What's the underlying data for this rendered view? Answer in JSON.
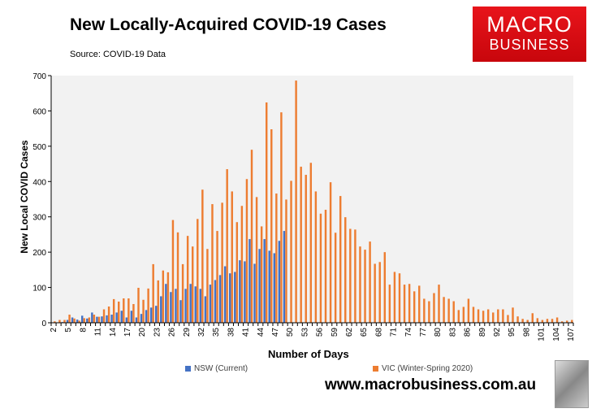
{
  "header": {
    "title": "New Locally-Acquired COVID-19 Cases",
    "source": "Source: COVID-19 Data"
  },
  "logo": {
    "line1": "MACRO",
    "line2": "BUSINESS"
  },
  "footer": {
    "url": "www.macrobusiness.com.au"
  },
  "colors": {
    "nsw": "#4472c4",
    "vic": "#ed7d31",
    "plot_bg": "#f2f2f2"
  },
  "chart_data": {
    "type": "bar",
    "title": "New Locally-Acquired COVID-19 Cases",
    "xlabel": "Number of Days",
    "ylabel": "New Local COVID Cases",
    "ylim": [
      0,
      700
    ],
    "yticks": [
      0,
      100,
      200,
      300,
      400,
      500,
      600,
      700
    ],
    "x_start": 2,
    "x_end": 107,
    "x_tick_step": 3,
    "grid": false,
    "legend": "bottom",
    "series": [
      {
        "name": "NSW (Current)",
        "start_day": 2,
        "values": [
          1,
          1,
          2,
          8,
          15,
          9,
          20,
          12,
          29,
          17,
          18,
          21,
          23,
          29,
          34,
          15,
          34,
          15,
          25,
          36,
          43,
          48,
          75,
          110,
          87,
          96,
          64,
          96,
          110,
          103,
          96,
          75,
          108,
          121,
          135,
          160,
          140,
          144,
          177,
          174,
          237,
          167,
          209,
          237,
          204,
          197,
          232,
          260
        ]
      },
      {
        "name": "VIC (Winter-Spring 2020)",
        "start_day": 2,
        "values": [
          4,
          8,
          8,
          23,
          12,
          6,
          13,
          15,
          23,
          17,
          38,
          46,
          67,
          60,
          69,
          69,
          53,
          99,
          65,
          97,
          166,
          120,
          148,
          143,
          291,
          256,
          166,
          246,
          216,
          294,
          377,
          209,
          336,
          260,
          340,
          435,
          372,
          285,
          331,
          407,
          490,
          356,
          273,
          624,
          548,
          366,
          596,
          349,
          402,
          686,
          442,
          419,
          453,
          372,
          309,
          320,
          398,
          255,
          359,
          299,
          266,
          264,
          216,
          207,
          230,
          167,
          172,
          200,
          108,
          144,
          140,
          108,
          110,
          89,
          105,
          68,
          61,
          84,
          108,
          73,
          68,
          61,
          36,
          45,
          68,
          45,
          38,
          34,
          38,
          29,
          38,
          38,
          22,
          43,
          18,
          11,
          8,
          27,
          13,
          8,
          11,
          11,
          15,
          4,
          6,
          8
        ]
      }
    ]
  }
}
